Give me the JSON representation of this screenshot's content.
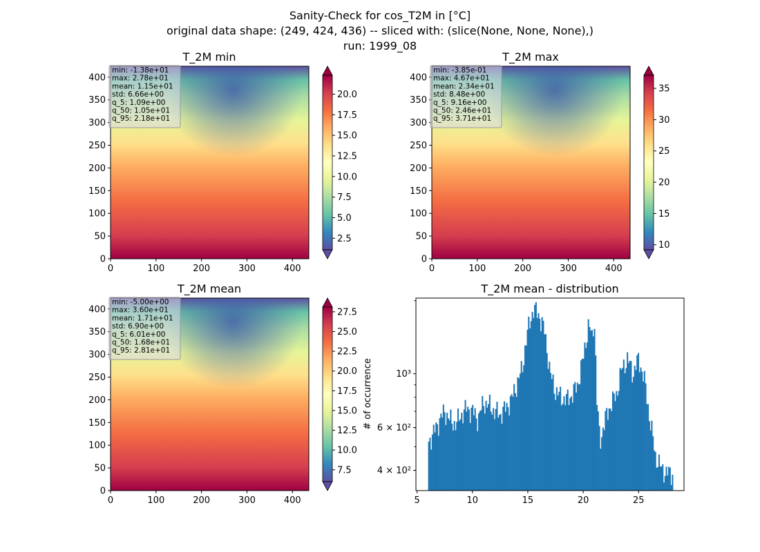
{
  "figure": {
    "title_lines": [
      "Sanity-Check for cos_T2M in [°C]",
      "original data shape: (249, 424, 436) -- sliced with: (slice(None, None, None),)",
      "run: 1999_08"
    ]
  },
  "colors": {
    "colormap": [
      "#5e4fa2",
      "#3288bd",
      "#66c2a5",
      "#abdda4",
      "#e6f598",
      "#ffffbf",
      "#fee08b",
      "#fdae61",
      "#f46d43",
      "#d53e4f",
      "#9e0142"
    ],
    "hist_bar": "#1f77b4"
  },
  "chart_data": [
    {
      "type": "heatmap",
      "title": "T_2M min",
      "xlim": [
        0,
        436
      ],
      "ylim": [
        0,
        424
      ],
      "x_ticks": [
        0,
        100,
        200,
        300,
        400
      ],
      "y_ticks": [
        0,
        50,
        100,
        150,
        200,
        250,
        300,
        350,
        400
      ],
      "colorbar": {
        "range": [
          1.1,
          22.3
        ],
        "ticks": [
          2.5,
          5.0,
          7.5,
          10.0,
          12.5,
          15.0,
          17.5,
          20.0
        ],
        "tick_labels": [
          "2.5",
          "5.0",
          "7.5",
          "10.0",
          "12.5",
          "15.0",
          "17.5",
          "20.0"
        ],
        "extend": "both"
      },
      "stats": [
        "min: -1.38e+01",
        "max: 2.78e+01",
        "mean: 1.15e+01",
        "std: 6.66e+00",
        "q_5: 1.09e+00",
        "q_50: 1.05e+01",
        "q_95: 2.18e+01"
      ]
    },
    {
      "type": "heatmap",
      "title": "T_2M max",
      "xlim": [
        0,
        436
      ],
      "ylim": [
        0,
        424
      ],
      "x_ticks": [
        0,
        100,
        200,
        300,
        400
      ],
      "y_ticks": [
        0,
        50,
        100,
        150,
        200,
        250,
        300,
        350,
        400
      ],
      "colorbar": {
        "range": [
          9.2,
          37.1
        ],
        "ticks": [
          10,
          15,
          20,
          25,
          30,
          35
        ],
        "tick_labels": [
          "10",
          "15",
          "20",
          "25",
          "30",
          "35"
        ],
        "extend": "both"
      },
      "stats": [
        "min: -3.85e-01",
        "max: 4.67e+01",
        "mean: 2.34e+01",
        "std: 8.48e+00",
        "q_5: 9.16e+00",
        "q_50: 2.46e+01",
        "q_95: 3.71e+01"
      ]
    },
    {
      "type": "heatmap",
      "title": "T_2M mean",
      "xlim": [
        0,
        436
      ],
      "ylim": [
        0,
        424
      ],
      "x_ticks": [
        0,
        100,
        200,
        300,
        400
      ],
      "y_ticks": [
        0,
        50,
        100,
        150,
        200,
        250,
        300,
        350,
        400
      ],
      "colorbar": {
        "range": [
          6.0,
          28.1
        ],
        "ticks": [
          7.5,
          10.0,
          12.5,
          15.0,
          17.5,
          20.0,
          22.5,
          25.0,
          27.5
        ],
        "tick_labels": [
          "7.5",
          "10.0",
          "12.5",
          "15.0",
          "17.5",
          "20.0",
          "22.5",
          "25.0",
          "27.5"
        ],
        "extend": "both"
      },
      "stats": [
        "min: -5.00e+00",
        "max: 3.60e+01",
        "mean: 1.71e+01",
        "std: 6.90e+00",
        "q_5: 6.01e+00",
        "q_50: 1.68e+01",
        "q_95: 2.81e+01"
      ]
    },
    {
      "type": "bar",
      "title": "T_2M mean - distribution",
      "ylabel": "# of occurrence",
      "yscale": "log",
      "xlim": [
        4.9,
        29.1
      ],
      "ylim": [
        330,
        2050
      ],
      "x_ticks": [
        5,
        10,
        15,
        20,
        25
      ],
      "y_ticks": [
        400,
        600,
        1000
      ],
      "y_tick_labels": [
        "4 × 10²",
        "6 × 10²",
        "10³"
      ],
      "bin_start": 6.0,
      "bin_width": 0.11,
      "anchors": [
        [
          6.0,
          520
        ],
        [
          6.5,
          570
        ],
        [
          7.0,
          640
        ],
        [
          7.5,
          700
        ],
        [
          8.0,
          640
        ],
        [
          8.5,
          620
        ],
        [
          9.0,
          680
        ],
        [
          9.5,
          720
        ],
        [
          10.0,
          700
        ],
        [
          10.5,
          650
        ],
        [
          11.0,
          760
        ],
        [
          11.5,
          740
        ],
        [
          12.0,
          700
        ],
        [
          12.5,
          680
        ],
        [
          13.0,
          720
        ],
        [
          13.5,
          780
        ],
        [
          14.0,
          900
        ],
        [
          14.5,
          1050
        ],
        [
          15.0,
          1500
        ],
        [
          15.5,
          1850
        ],
        [
          16.0,
          1750
        ],
        [
          16.5,
          1500
        ],
        [
          17.0,
          1000
        ],
        [
          17.5,
          850
        ],
        [
          18.0,
          800
        ],
        [
          18.5,
          780
        ],
        [
          19.0,
          820
        ],
        [
          19.5,
          900
        ],
        [
          20.0,
          1150
        ],
        [
          20.5,
          1600
        ],
        [
          20.8,
          1400
        ],
        [
          21.0,
          1700
        ],
        [
          21.2,
          800
        ],
        [
          21.5,
          520
        ],
        [
          22.0,
          650
        ],
        [
          22.5,
          750
        ],
        [
          23.0,
          820
        ],
        [
          23.5,
          1050
        ],
        [
          24.0,
          1150
        ],
        [
          24.5,
          1000
        ],
        [
          25.0,
          1150
        ],
        [
          25.5,
          950
        ],
        [
          26.0,
          650
        ],
        [
          26.5,
          460
        ],
        [
          27.0,
          410
        ],
        [
          27.5,
          390
        ],
        [
          28.0,
          390
        ]
      ]
    }
  ]
}
